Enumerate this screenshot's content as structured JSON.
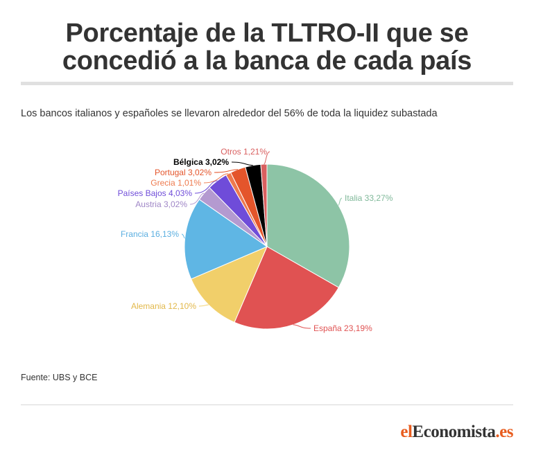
{
  "header": {
    "title_line1": "Porcentaje de la TLTRO-II que se",
    "title_line2": "concedió a la banca de cada país",
    "subtitle": "Los bancos italianos y españoles se llevaron alrededor del 56% de toda la liquidez subastada"
  },
  "footer": {
    "source": "Fuente: UBS y BCE",
    "logo_part1": "el",
    "logo_part2": "Economista",
    "logo_part3": ".es"
  },
  "chart_data": {
    "type": "pie",
    "title": "Porcentaje de la TLTRO-II que se concedió a la banca de cada país",
    "subtitle": "Los bancos italianos y españoles se llevaron alrededor del 56% de toda la liquidez subastada",
    "start": "12 o'clock, clockwise",
    "slices": [
      {
        "label": "Italia 33,27%",
        "value": 33.27,
        "color": "#8dc4a6"
      },
      {
        "label": "España 23,19%",
        "value": 23.19,
        "color": "#e05252"
      },
      {
        "label": "Alemania 12,10%",
        "value": 12.1,
        "color": "#f1cf6a"
      },
      {
        "label": "Francia 16,13%",
        "value": 16.13,
        "color": "#5fb6e4"
      },
      {
        "label": "Austria 3,02%",
        "value": 3.02,
        "color": "#b49ad0"
      },
      {
        "label": "Países Bajos 4,03%",
        "value": 4.03,
        "color": "#6f4cd9"
      },
      {
        "label": "Grecia 1,01%",
        "value": 1.01,
        "color": "#ee7a4e"
      },
      {
        "label": "Portugal 3,02%",
        "value": 3.02,
        "color": "#e4552b"
      },
      {
        "label": "Bélgica 3,02%",
        "value": 3.02,
        "color": "#000000"
      },
      {
        "label": "Otros 1,21%",
        "value": 1.21,
        "color": "#d95f5f"
      }
    ]
  }
}
